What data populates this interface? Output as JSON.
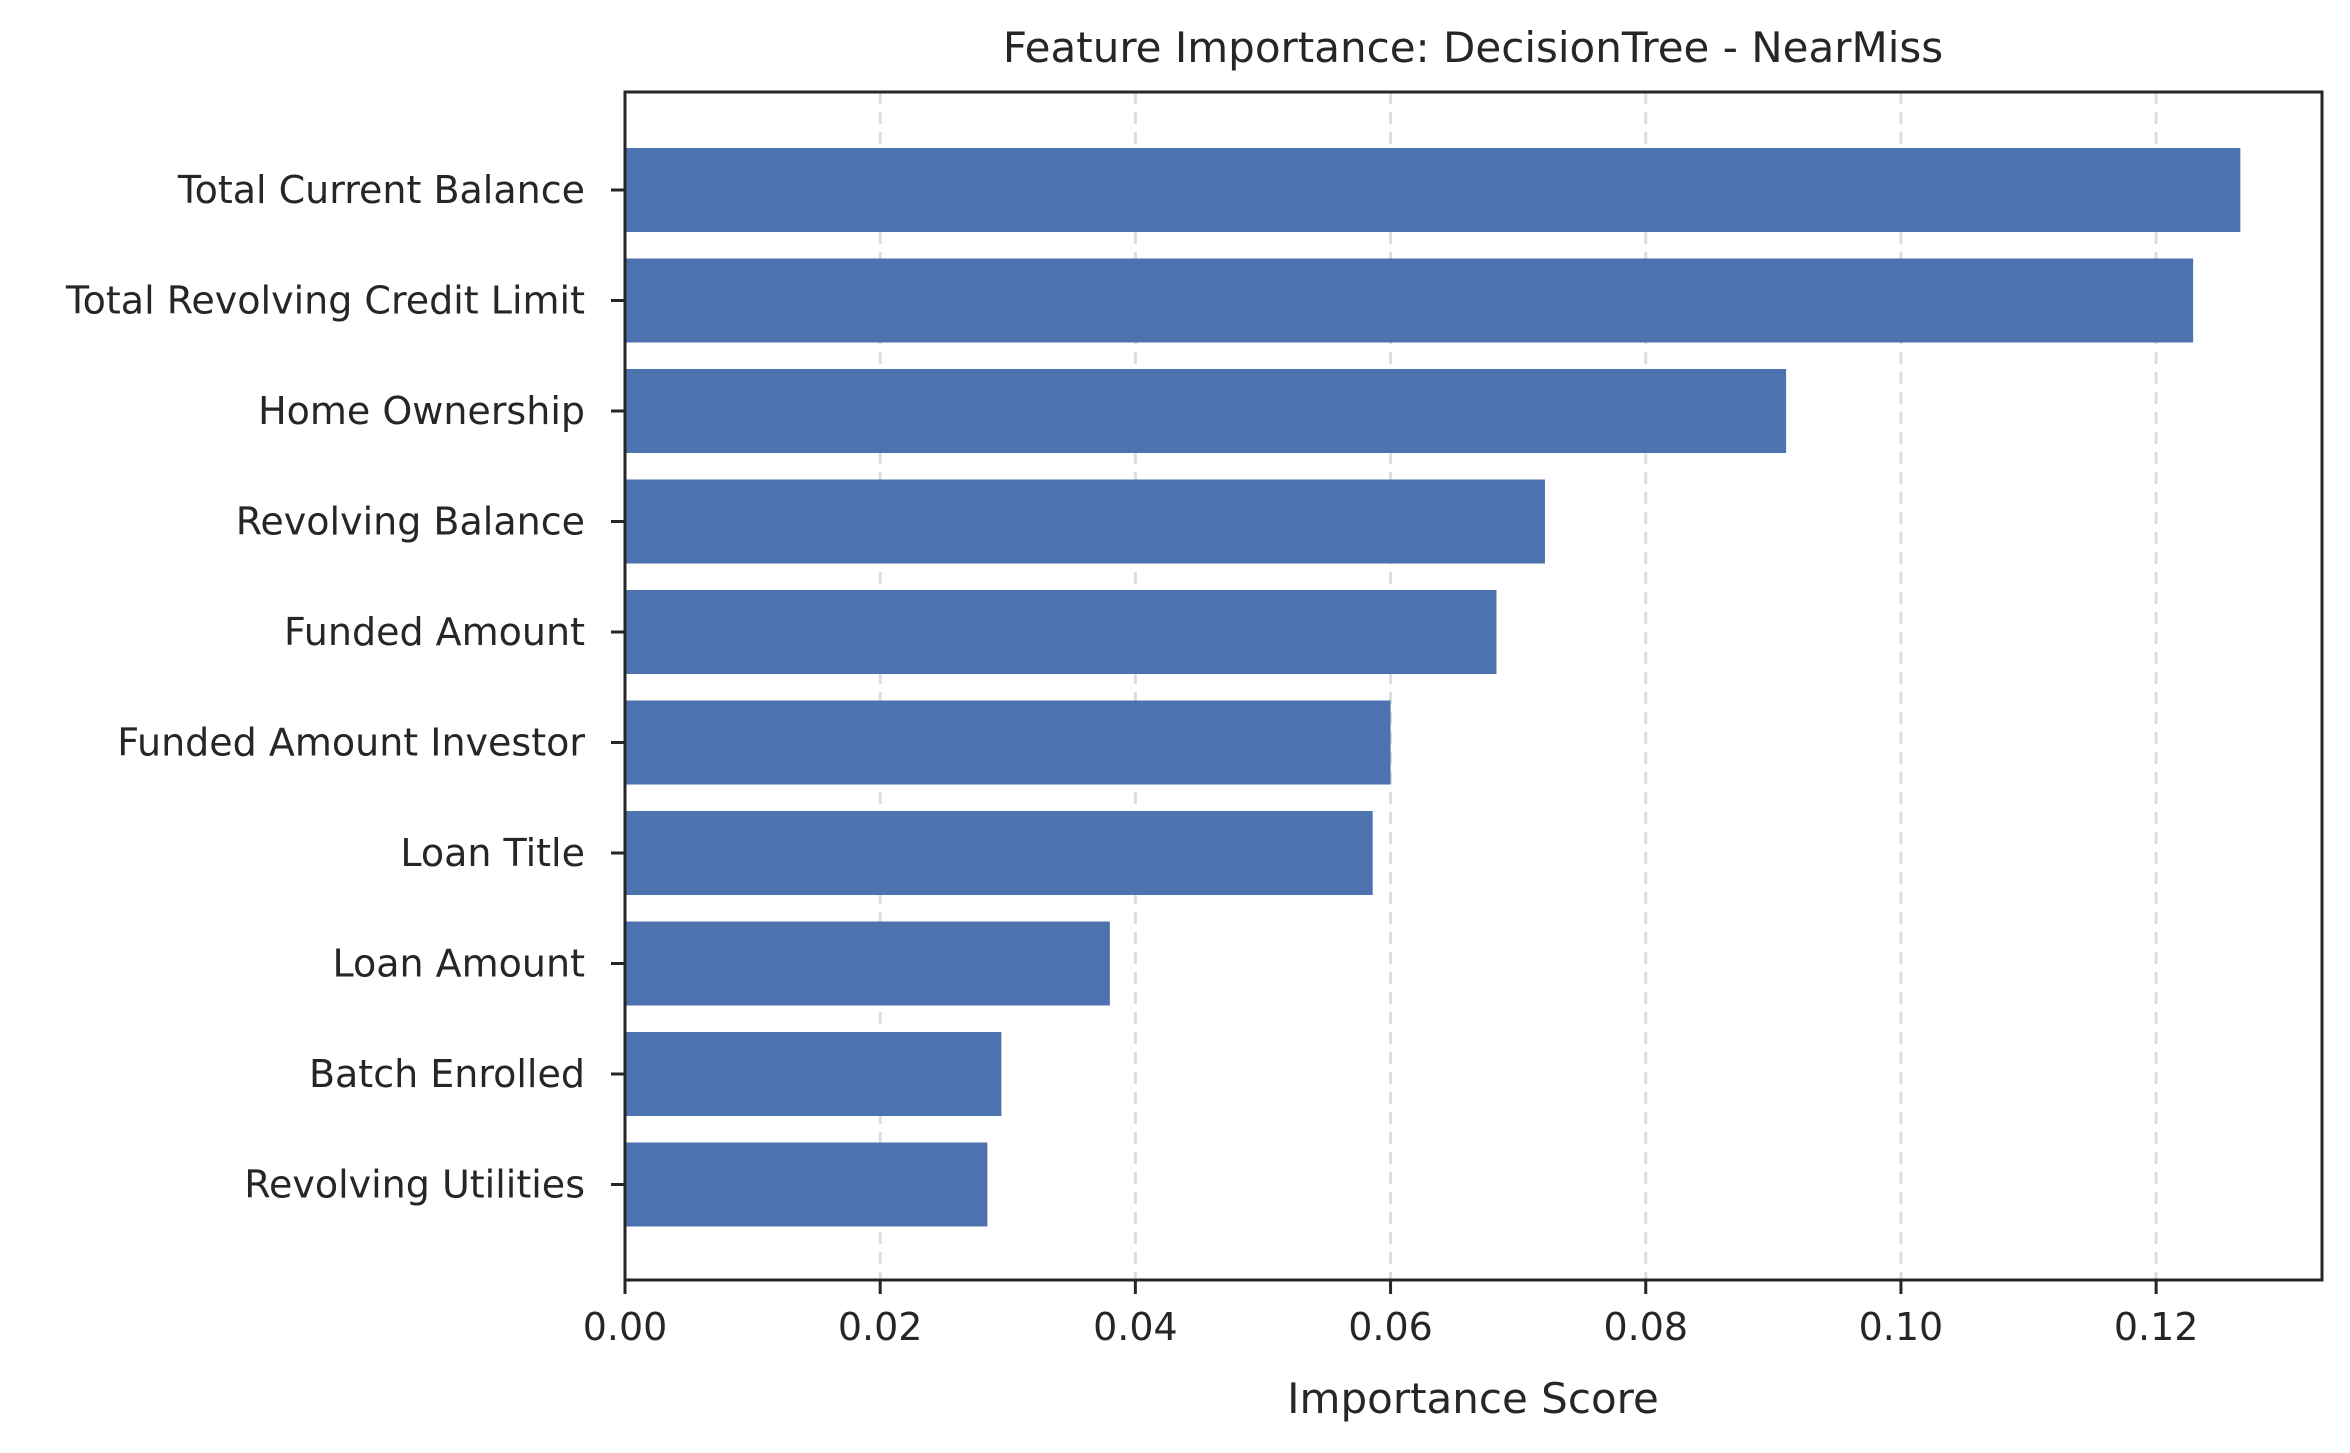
{
  "chart_data": {
    "type": "bar",
    "orientation": "horizontal",
    "title": "Feature Importance: DecisionTree - NearMiss",
    "xlabel": "Importance Score",
    "ylabel": "",
    "categories": [
      "Total Current Balance",
      "Total Revolving Credit Limit",
      "Home Ownership",
      "Revolving Balance",
      "Funded Amount",
      "Funded Amount Investor",
      "Loan Title",
      "Loan Amount",
      "Batch Enrolled",
      "Revolving Utilities"
    ],
    "values": [
      0.1266,
      0.1229,
      0.091,
      0.0721,
      0.0683,
      0.06,
      0.0586,
      0.038,
      0.0295,
      0.0284
    ],
    "xlim": [
      0,
      0.133
    ],
    "xticks": [
      0.0,
      0.02,
      0.04,
      0.06,
      0.08,
      0.1,
      0.12
    ],
    "xtick_labels": [
      "0.00",
      "0.02",
      "0.04",
      "0.06",
      "0.08",
      "0.10",
      "0.12"
    ],
    "grid": "x, dashed",
    "bar_color": "#4c72b0",
    "grid_color": "#dddddd",
    "axis_color": "#262626"
  }
}
